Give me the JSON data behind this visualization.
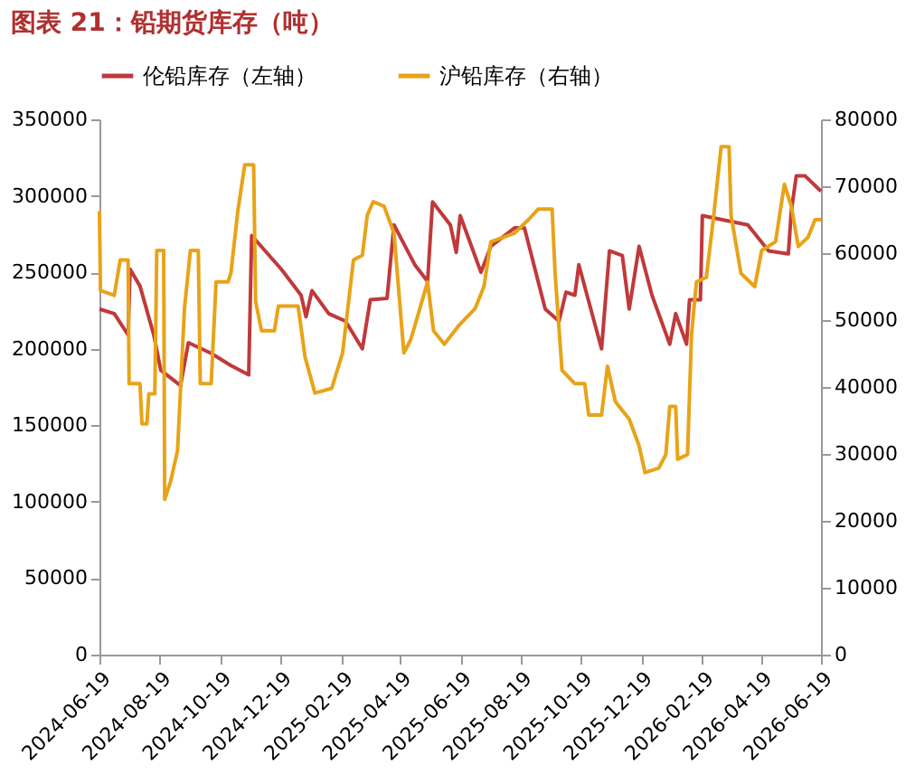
{
  "chart_data": {
    "type": "line",
    "title": "图表 21：铅期货库存（吨）",
    "xlim": [
      "2024-06-19",
      "2026-06-19"
    ],
    "xticks": [
      "2024-06-19",
      "2024-08-19",
      "2024-10-19",
      "2024-12-19",
      "2025-02-19",
      "2025-04-19",
      "2025-06-19",
      "2025-08-19",
      "2025-10-19",
      "2025-12-19",
      "2026-02-19",
      "2026-04-19",
      "2026-06-19"
    ],
    "ylim": [
      0,
      350000
    ],
    "yticks": [
      0,
      50000,
      100000,
      150000,
      200000,
      250000,
      300000,
      350000
    ],
    "y2lim": [
      0,
      80000
    ],
    "y2ticks": [
      0,
      10000,
      20000,
      30000,
      40000,
      50000,
      60000,
      70000,
      80000
    ],
    "legend": "top",
    "grid": false,
    "line_style": "solid",
    "series": [
      {
        "name": "伦铅库存（左轴）",
        "color": "#c0393b",
        "axis": "y",
        "x": [
          "2024-06-19",
          "2024-07-04",
          "2024-07-18",
          "2024-07-20",
          "2024-07-30",
          "2024-08-13",
          "2024-08-20",
          "2024-09-09",
          "2024-09-17",
          "2024-10-10",
          "2024-10-30",
          "2024-11-17",
          "2024-11-20",
          "2024-12-20",
          "2025-01-09",
          "2025-01-14",
          "2025-01-20",
          "2025-02-06",
          "2025-02-23",
          "2025-03-12",
          "2025-03-20",
          "2025-04-06",
          "2025-04-13",
          "2025-05-04",
          "2025-05-17",
          "2025-05-22",
          "2025-06-09",
          "2025-06-15",
          "2025-06-19",
          "2025-06-27",
          "2025-07-10",
          "2025-07-20",
          "2025-08-13",
          "2025-08-23",
          "2025-09-13",
          "2025-09-27",
          "2025-10-04",
          "2025-10-13",
          "2025-10-17",
          "2025-11-09",
          "2025-11-17",
          "2025-11-30",
          "2025-12-07",
          "2025-12-17",
          "2025-12-30",
          "2026-01-17",
          "2026-01-23",
          "2026-02-03",
          "2026-02-06",
          "2026-02-17",
          "2026-02-19",
          "2026-04-06",
          "2026-04-27",
          "2026-05-17",
          "2026-05-20",
          "2026-05-25",
          "2026-06-03",
          "2026-06-19"
        ],
        "values": [
          226000,
          223000,
          209000,
          252000,
          241000,
          209000,
          186000,
          176000,
          204000,
          197000,
          189000,
          183000,
          274000,
          252000,
          235000,
          221000,
          238000,
          223000,
          218000,
          200000,
          232000,
          233000,
          281000,
          255000,
          244000,
          296000,
          281000,
          263000,
          287000,
          273000,
          250000,
          267000,
          279000,
          279000,
          226000,
          218000,
          237000,
          235000,
          255000,
          200000,
          264000,
          261000,
          226000,
          267000,
          235000,
          203000,
          223000,
          203000,
          232000,
          232000,
          287000,
          281000,
          264000,
          262000,
          290000,
          313000,
          313000,
          303000
        ]
      },
      {
        "name": "沪铅库存（右轴）",
        "color": "#e8a317",
        "axis": "y2",
        "x": [
          "2024-06-19",
          "2024-06-20",
          "2024-07-04",
          "2024-07-10",
          "2024-07-18",
          "2024-07-19",
          "2024-07-30",
          "2024-08-01",
          "2024-08-06",
          "2024-08-08",
          "2024-08-14",
          "2024-08-16",
          "2024-08-23",
          "2024-08-24",
          "2024-08-30",
          "2024-09-06",
          "2024-09-13",
          "2024-09-19",
          "2024-09-27",
          "2024-09-29",
          "2024-10-10",
          "2024-10-15",
          "2024-10-27",
          "2024-10-30",
          "2024-11-06",
          "2024-11-13",
          "2024-11-22",
          "2024-11-24",
          "2024-11-30",
          "2024-12-13",
          "2024-12-17",
          "2025-01-06",
          "2025-01-13",
          "2025-01-23",
          "2025-02-09",
          "2025-02-20",
          "2025-03-03",
          "2025-03-12",
          "2025-03-17",
          "2025-03-23",
          "2025-04-03",
          "2025-04-13",
          "2025-04-23",
          "2025-04-30",
          "2025-05-17",
          "2025-05-23",
          "2025-06-03",
          "2025-06-17",
          "2025-07-04",
          "2025-07-13",
          "2025-07-20",
          "2025-08-13",
          "2025-08-27",
          "2025-09-06",
          "2025-09-20",
          "2025-09-23",
          "2025-09-30",
          "2025-10-13",
          "2025-10-23",
          "2025-10-27",
          "2025-11-09",
          "2025-11-15",
          "2025-11-23",
          "2025-12-07",
          "2025-12-17",
          "2025-12-23",
          "2026-01-06",
          "2026-01-13",
          "2026-01-17",
          "2026-01-23",
          "2026-01-25",
          "2026-02-04",
          "2026-02-08",
          "2026-02-13",
          "2026-02-23",
          "2026-03-02",
          "2026-03-10",
          "2026-03-18",
          "2026-03-20",
          "2026-03-30",
          "2026-04-13",
          "2026-04-20",
          "2026-05-04",
          "2026-05-13",
          "2026-05-20",
          "2026-05-27",
          "2026-06-06",
          "2026-06-13",
          "2026-06-19"
        ],
        "values": [
          66300,
          54400,
          53700,
          59000,
          59000,
          40500,
          40500,
          34500,
          34500,
          39000,
          39000,
          60400,
          60400,
          23200,
          25900,
          30500,
          51700,
          60400,
          60400,
          40500,
          40500,
          55700,
          55700,
          57000,
          66300,
          73200,
          73200,
          52800,
          48400,
          48400,
          52100,
          52100,
          44500,
          39100,
          39800,
          45100,
          59000,
          59700,
          65700,
          67700,
          67000,
          63000,
          45100,
          47100,
          55700,
          48400,
          46400,
          49100,
          51700,
          55000,
          61700,
          63000,
          65000,
          66600,
          66600,
          57000,
          42500,
          40500,
          40500,
          35800,
          35800,
          43100,
          37800,
          35200,
          31200,
          27200,
          27900,
          29900,
          37100,
          37100,
          29200,
          29900,
          47800,
          55700,
          56400,
          65000,
          75900,
          75900,
          65700,
          57000,
          55000,
          60400,
          61700,
          70300,
          67000,
          61000,
          62400,
          65000,
          65000
        ]
      }
    ]
  }
}
